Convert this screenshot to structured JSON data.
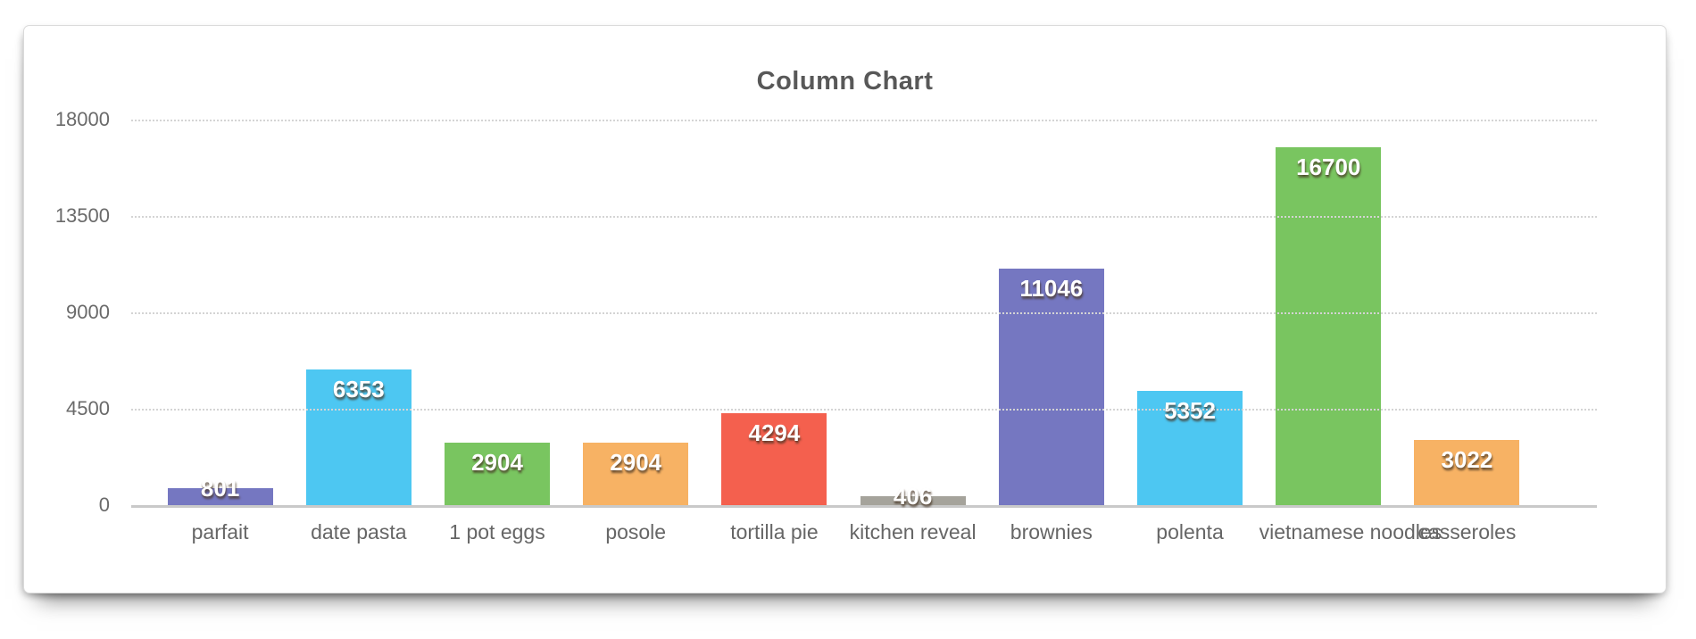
{
  "chart_data": {
    "type": "bar",
    "title": "Column Chart",
    "categories": [
      "parfait",
      "date pasta",
      "1 pot eggs",
      "posole",
      "tortilla pie",
      "kitchen reveal",
      "brownies",
      "polenta",
      "vietnamese noodles",
      "casseroles"
    ],
    "values": [
      801,
      6353,
      2904,
      2904,
      4294,
      406,
      11046,
      5352,
      16700,
      3022
    ],
    "bar_colors": [
      "#7577C1",
      "#4DC7F2",
      "#79C560",
      "#F7B264",
      "#F4604E",
      "#A5A39B",
      "#7577C1",
      "#4DC7F2",
      "#79C560",
      "#F7B264"
    ],
    "value_labels": [
      "801",
      "6353",
      "2904",
      "2904",
      "4294",
      "406",
      "11046",
      "5352",
      "16700",
      "3022"
    ],
    "y_ticks": [
      "18000",
      "13500",
      "9000",
      "4500",
      "0"
    ],
    "ylim": [
      0,
      18000
    ],
    "xlabel": "",
    "ylabel": "",
    "grid": "horizontal-dotted",
    "legend": "none",
    "value_label_position": "inside-top"
  },
  "styles": {
    "title_color": "#585858",
    "axis_label_color": "#6a6a6a",
    "gridline_color": "#d4d4d4",
    "baseline_color": "#c9c9c9",
    "value_label_color": "#ffffff",
    "card_background": "#ffffff",
    "card_border_color": "#dadada",
    "page_background": "#ffffff"
  }
}
